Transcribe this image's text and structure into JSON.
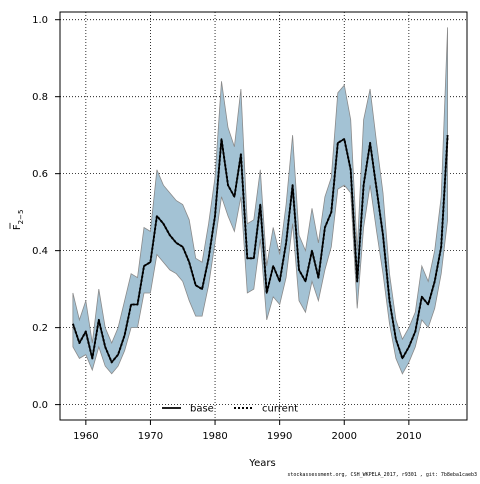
{
  "chart_data": {
    "type": "line",
    "xlabel": "Years",
    "ylabel_main": "F",
    "ylabel_sub": "2−5",
    "xlim": [
      1956,
      2019
    ],
    "ylim": [
      -0.04,
      1.02
    ],
    "xticks": [
      1960,
      1970,
      1980,
      1990,
      2000,
      2010
    ],
    "yticks": [
      0.0,
      0.2,
      0.4,
      0.6,
      0.8,
      1.0
    ],
    "xtick_labels": [
      "1960",
      "1970",
      "1980",
      "1990",
      "2000",
      "2010"
    ],
    "ytick_labels": [
      "0.0",
      "0.2",
      "0.4",
      "0.6",
      "0.8",
      "1.0"
    ],
    "grid": true,
    "legend_position": "bottom-center",
    "band_color": "#a3c2d4",
    "band_edge_color": "#8a8a8a",
    "x": [
      1958,
      1959,
      1960,
      1961,
      1962,
      1963,
      1964,
      1965,
      1966,
      1967,
      1968,
      1969,
      1970,
      1971,
      1972,
      1973,
      1974,
      1975,
      1976,
      1977,
      1978,
      1979,
      1980,
      1981,
      1982,
      1983,
      1984,
      1985,
      1986,
      1987,
      1988,
      1989,
      1990,
      1991,
      1992,
      1993,
      1994,
      1995,
      1996,
      1997,
      1998,
      1999,
      2000,
      2001,
      2002,
      2003,
      2004,
      2005,
      2006,
      2007,
      2008,
      2009,
      2010,
      2011,
      2012,
      2013,
      2014,
      2015,
      2016
    ],
    "series": [
      {
        "name": "base",
        "style": "solid",
        "color": "#000000",
        "values": [
          0.21,
          0.16,
          0.19,
          0.12,
          0.22,
          0.15,
          0.11,
          0.13,
          0.18,
          0.26,
          0.26,
          0.36,
          0.37,
          0.49,
          0.47,
          0.44,
          0.42,
          0.41,
          0.37,
          0.31,
          0.3,
          0.38,
          0.49,
          0.69,
          0.57,
          0.54,
          0.65,
          0.38,
          0.38,
          0.52,
          0.29,
          0.36,
          0.32,
          0.42,
          0.57,
          0.35,
          0.32,
          0.4,
          0.33,
          0.46,
          0.5,
          0.68,
          0.69,
          0.61,
          0.32,
          0.57,
          0.68,
          0.56,
          0.44,
          0.27,
          0.17,
          0.12,
          0.15,
          0.19,
          0.28,
          0.26,
          0.32,
          0.41,
          0.7
        ]
      },
      {
        "name": "current",
        "style": "dotted",
        "color": "#000000",
        "values": [
          0.21,
          0.16,
          0.19,
          0.12,
          0.22,
          0.15,
          0.11,
          0.13,
          0.18,
          0.26,
          0.26,
          0.36,
          0.37,
          0.49,
          0.47,
          0.44,
          0.42,
          0.41,
          0.37,
          0.31,
          0.3,
          0.38,
          0.49,
          0.69,
          0.57,
          0.54,
          0.65,
          0.38,
          0.38,
          0.52,
          0.29,
          0.36,
          0.32,
          0.42,
          0.57,
          0.35,
          0.32,
          0.4,
          0.33,
          0.46,
          0.5,
          0.68,
          0.69,
          0.61,
          0.32,
          0.57,
          0.68,
          0.56,
          0.44,
          0.27,
          0.17,
          0.12,
          0.15,
          0.19,
          0.28,
          0.26,
          0.32,
          0.41,
          0.7
        ]
      }
    ],
    "band": {
      "lower": [
        0.15,
        0.12,
        0.13,
        0.09,
        0.15,
        0.1,
        0.08,
        0.1,
        0.14,
        0.2,
        0.2,
        0.29,
        0.29,
        0.39,
        0.37,
        0.35,
        0.34,
        0.32,
        0.27,
        0.23,
        0.23,
        0.31,
        0.42,
        0.54,
        0.49,
        0.45,
        0.54,
        0.29,
        0.3,
        0.43,
        0.22,
        0.28,
        0.26,
        0.33,
        0.47,
        0.27,
        0.24,
        0.32,
        0.27,
        0.35,
        0.41,
        0.56,
        0.57,
        0.55,
        0.25,
        0.46,
        0.57,
        0.45,
        0.34,
        0.21,
        0.12,
        0.08,
        0.11,
        0.15,
        0.22,
        0.2,
        0.25,
        0.34,
        0.48
      ],
      "upper": [
        0.29,
        0.22,
        0.27,
        0.16,
        0.3,
        0.2,
        0.16,
        0.2,
        0.27,
        0.34,
        0.33,
        0.46,
        0.45,
        0.61,
        0.57,
        0.55,
        0.53,
        0.52,
        0.48,
        0.38,
        0.37,
        0.47,
        0.59,
        0.84,
        0.72,
        0.67,
        0.82,
        0.47,
        0.48,
        0.61,
        0.36,
        0.46,
        0.39,
        0.52,
        0.7,
        0.44,
        0.4,
        0.51,
        0.42,
        0.54,
        0.59,
        0.81,
        0.83,
        0.74,
        0.4,
        0.74,
        0.82,
        0.68,
        0.55,
        0.34,
        0.22,
        0.17,
        0.2,
        0.24,
        0.36,
        0.32,
        0.4,
        0.54,
        0.98
      ]
    },
    "legend": [
      "base",
      "current"
    ]
  },
  "footer": {
    "text": "stockassessment.org, CSH_WKPELA_2017, r9301 , git: 7b8eba1caeb3"
  }
}
